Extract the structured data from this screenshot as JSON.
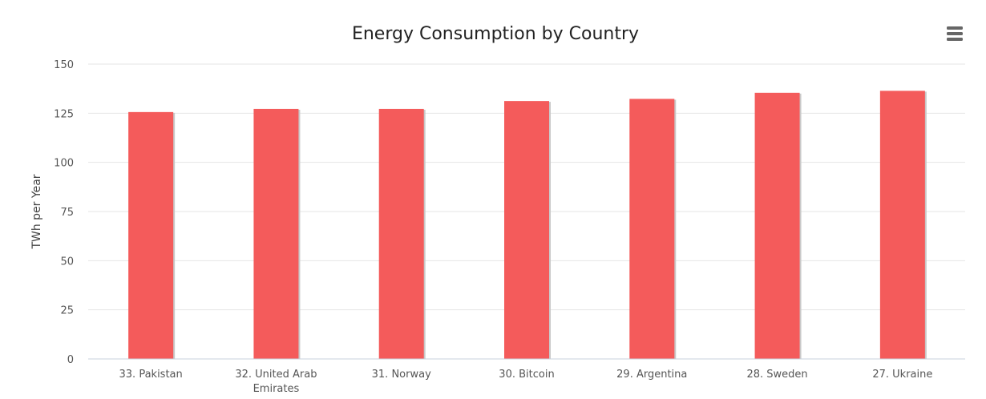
{
  "colors": {
    "bar": "#f45b5b",
    "bar_shadow": "#c8c8c8",
    "menu_icon": "#666666"
  },
  "menu": {
    "icon": "hamburger-menu-icon"
  },
  "chart_data": {
    "type": "bar",
    "title": "Energy Consumption by Country",
    "xlabel": "",
    "ylabel": "TWh per Year",
    "ylim": [
      0,
      150
    ],
    "yticks": [
      0,
      25,
      50,
      75,
      100,
      125,
      150
    ],
    "grid": true,
    "legend": "none",
    "categories": [
      [
        "33. Pakistan"
      ],
      [
        "32. United Arab",
        "Emirates"
      ],
      [
        "31. Norway"
      ],
      [
        "30. Bitcoin"
      ],
      [
        "29. Argentina"
      ],
      [
        "28. Sweden"
      ],
      [
        "27. Ukraine"
      ]
    ],
    "values": [
      125.6,
      127.2,
      127.2,
      131.2,
      132.3,
      135.4,
      136.4
    ]
  }
}
